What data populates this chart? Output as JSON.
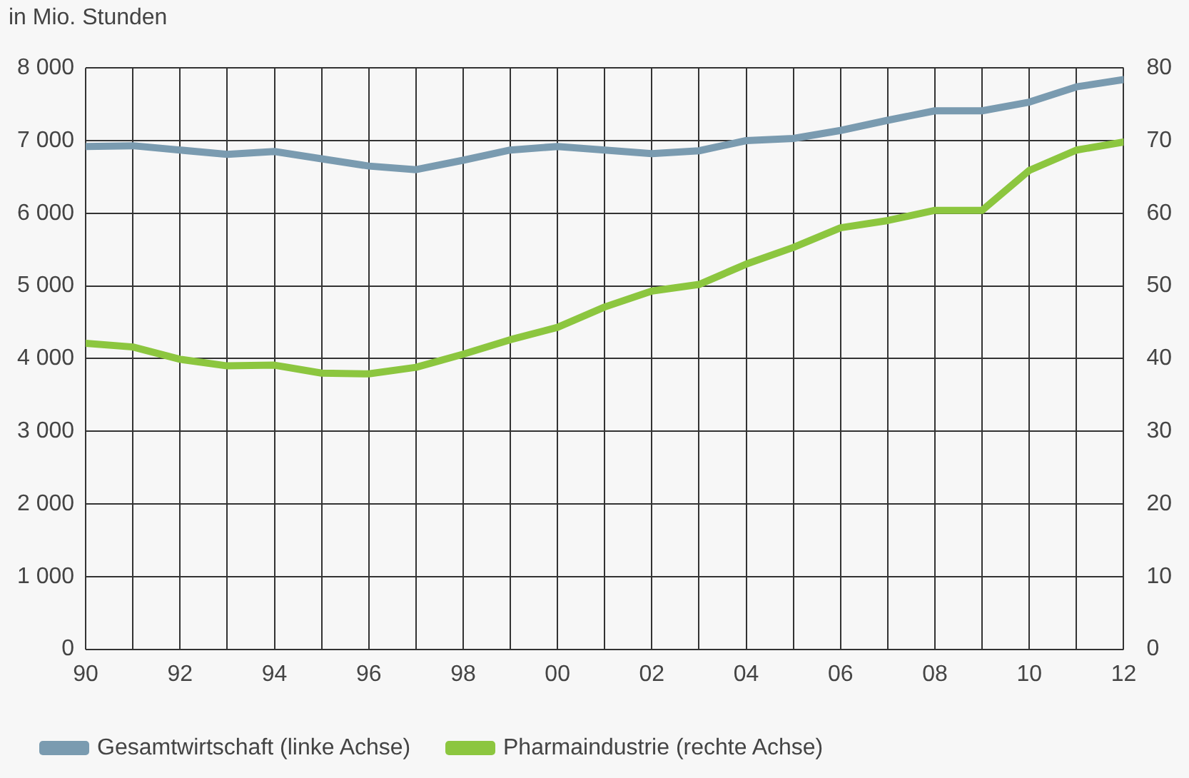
{
  "chart_data": {
    "type": "line",
    "ylabel": "in Mio. Stunden",
    "x": [
      1990,
      1991,
      1992,
      1993,
      1994,
      1995,
      1996,
      1997,
      1998,
      1999,
      2000,
      2001,
      2002,
      2003,
      2004,
      2005,
      2006,
      2007,
      2008,
      2009,
      2010,
      2011,
      2012
    ],
    "xlim": [
      1990,
      2012
    ],
    "xticks": [
      {
        "value": 1990,
        "label": "90"
      },
      {
        "value": 1991,
        "label": null
      },
      {
        "value": 1992,
        "label": "92"
      },
      {
        "value": 1993,
        "label": null
      },
      {
        "value": 1994,
        "label": "94"
      },
      {
        "value": 1995,
        "label": null
      },
      {
        "value": 1996,
        "label": "96"
      },
      {
        "value": 1997,
        "label": null
      },
      {
        "value": 1998,
        "label": "98"
      },
      {
        "value": 1999,
        "label": null
      },
      {
        "value": 2000,
        "label": "00"
      },
      {
        "value": 2001,
        "label": null
      },
      {
        "value": 2002,
        "label": "02"
      },
      {
        "value": 2003,
        "label": null
      },
      {
        "value": 2004,
        "label": "04"
      },
      {
        "value": 2005,
        "label": null
      },
      {
        "value": 2006,
        "label": "06"
      },
      {
        "value": 2007,
        "label": null
      },
      {
        "value": 2008,
        "label": "08"
      },
      {
        "value": 2009,
        "label": null
      },
      {
        "value": 2010,
        "label": "10"
      },
      {
        "value": 2011,
        "label": null
      },
      {
        "value": 2012,
        "label": "12"
      }
    ],
    "ylim": [
      0,
      8000
    ],
    "yticks": [
      0,
      {
        "value": 1000,
        "label": "1 000"
      },
      {
        "value": 2000,
        "label": "2 000"
      },
      {
        "value": 3000,
        "label": "3 000"
      },
      {
        "value": 4000,
        "label": "4 000"
      },
      {
        "value": 5000,
        "label": "5 000"
      },
      {
        "value": 6000,
        "label": "6 000"
      },
      {
        "value": 7000,
        "label": "7 000"
      },
      {
        "value": 8000,
        "label": "8 000"
      }
    ],
    "y2lim": [
      0,
      80
    ],
    "y2ticks": [
      0,
      10,
      20,
      30,
      40,
      50,
      60,
      70,
      80
    ],
    "grid": true,
    "legend": "bottom left",
    "marker": "none",
    "line_style": "solid",
    "series": [
      {
        "name": "Gesamtwirtschaft (linke Achse)",
        "color": "#7a9bb0",
        "values": [
          6920,
          6930,
          6870,
          6810,
          6850,
          6750,
          6650,
          6600,
          6730,
          6870,
          6920,
          6870,
          6820,
          6860,
          7000,
          7030,
          7140,
          7280,
          7410,
          7410,
          7530,
          7740,
          7840
        ]
      },
      {
        "name": "Pharmaindustrie (rechte Achse)",
        "color": "#8cc63f",
        "axis": "y2",
        "values": [
          42.1,
          41.6,
          39.9,
          39.0,
          39.1,
          38.0,
          37.9,
          38.8,
          40.6,
          42.6,
          44.3,
          47.1,
          49.3,
          50.2,
          53.0,
          55.3,
          58.0,
          59.0,
          60.4,
          60.4,
          65.9,
          68.7,
          69.8
        ]
      }
    ]
  }
}
